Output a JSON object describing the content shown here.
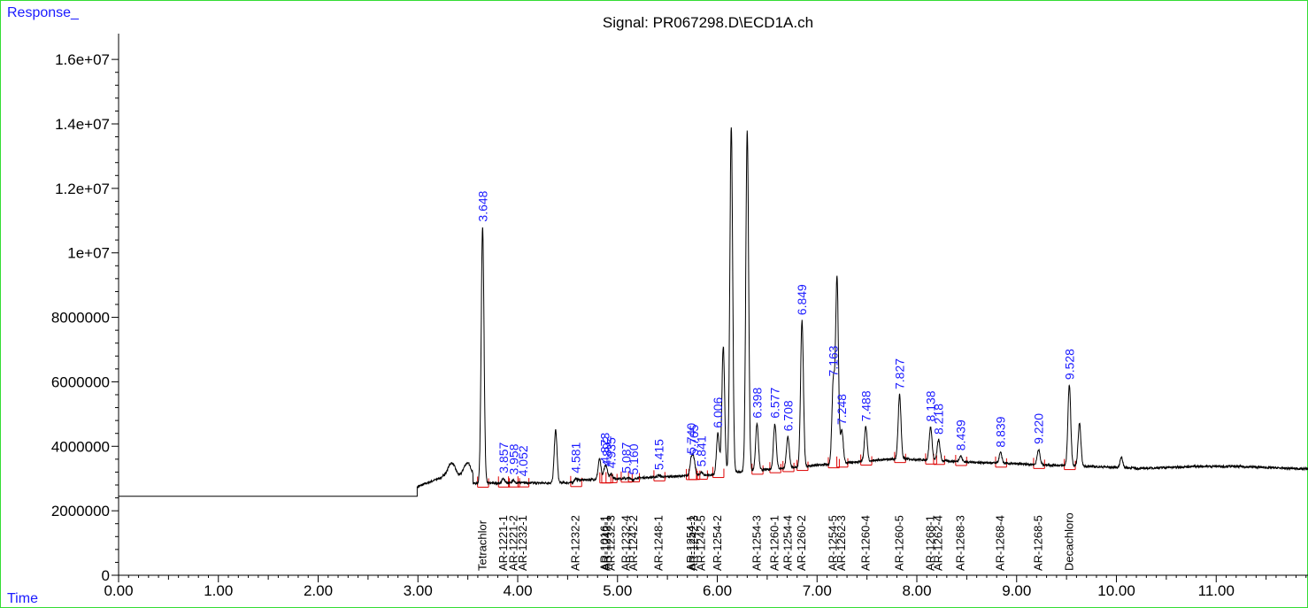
{
  "chart_data": {
    "type": "line",
    "title": "Signal: PR067298.D\\ECD1A.ch",
    "ylabel": "Response_",
    "xlabel": "Time",
    "xlim": [
      0,
      11.92
    ],
    "ylim": [
      0,
      16800000
    ],
    "x_ticks": [
      "0.00",
      "1.00",
      "2.00",
      "3.00",
      "4.00",
      "5.00",
      "6.00",
      "7.00",
      "8.00",
      "9.00",
      "10.00",
      "11.00"
    ],
    "y_ticks": [
      "0",
      "2000000",
      "4000000",
      "6000000",
      "8000000",
      "1e+07",
      "1.2e+07",
      "1.4e+07",
      "1.6e+07"
    ],
    "baseline_level": 2450000,
    "signal_start": 2.99,
    "peaks": [
      {
        "rt": 3.648,
        "height": 10800000,
        "label": "3.648"
      },
      {
        "rt": 3.857,
        "height": 3000000,
        "label": "3.857"
      },
      {
        "rt": 3.958,
        "height": 2950000,
        "label": "3.958"
      },
      {
        "rt": 4.052,
        "height": 2900000,
        "label": "4.052"
      },
      {
        "rt": 4.38,
        "height": 4500000,
        "label": ""
      },
      {
        "rt": 4.581,
        "height": 3000000,
        "label": "4.581"
      },
      {
        "rt": 4.82,
        "height": 3600000,
        "label": ""
      },
      {
        "rt": 4.873,
        "height": 3300000,
        "label": "4.873"
      },
      {
        "rt": 4.892,
        "height": 3200000,
        "label": "4.892"
      },
      {
        "rt": 4.935,
        "height": 3150000,
        "label": "4.935"
      },
      {
        "rt": 5.087,
        "height": 3000000,
        "label": "5.087"
      },
      {
        "rt": 5.16,
        "height": 2950000,
        "label": "5.160"
      },
      {
        "rt": 5.415,
        "height": 3100000,
        "label": "5.415"
      },
      {
        "rt": 5.74,
        "height": 3600000,
        "label": "5.740"
      },
      {
        "rt": 5.765,
        "height": 3550000,
        "label": "5.765"
      },
      {
        "rt": 5.841,
        "height": 3200000,
        "label": "5.841"
      },
      {
        "rt": 6.006,
        "height": 4400000,
        "label": "6.006"
      },
      {
        "rt": 6.06,
        "height": 7100000,
        "label": ""
      },
      {
        "rt": 6.14,
        "height": 13900000,
        "label": ""
      },
      {
        "rt": 6.3,
        "height": 13800000,
        "label": ""
      },
      {
        "rt": 6.398,
        "height": 4700000,
        "label": "6.398"
      },
      {
        "rt": 6.577,
        "height": 4700000,
        "label": "6.577"
      },
      {
        "rt": 6.708,
        "height": 4300000,
        "label": "6.708"
      },
      {
        "rt": 6.849,
        "height": 7900000,
        "label": "6.849"
      },
      {
        "rt": 7.163,
        "height": 6000000,
        "label": "7.163"
      },
      {
        "rt": 7.2,
        "height": 9200000,
        "label": ""
      },
      {
        "rt": 7.248,
        "height": 4500000,
        "label": "7.248"
      },
      {
        "rt": 7.488,
        "height": 4600000,
        "label": "7.488"
      },
      {
        "rt": 7.827,
        "height": 5600000,
        "label": "7.827"
      },
      {
        "rt": 8.138,
        "height": 4600000,
        "label": "8.138"
      },
      {
        "rt": 8.218,
        "height": 4200000,
        "label": "8.218"
      },
      {
        "rt": 8.439,
        "height": 3700000,
        "label": "8.439"
      },
      {
        "rt": 8.839,
        "height": 3800000,
        "label": "8.839"
      },
      {
        "rt": 9.22,
        "height": 3900000,
        "label": "9.220"
      },
      {
        "rt": 9.528,
        "height": 5900000,
        "label": "9.528"
      },
      {
        "rt": 9.63,
        "height": 4700000,
        "label": ""
      },
      {
        "rt": 10.05,
        "height": 3650000,
        "label": ""
      }
    ],
    "compound_labels": [
      {
        "rt": 3.648,
        "label": "Tetrachlor"
      },
      {
        "rt": 3.857,
        "label": "AR-1221-1"
      },
      {
        "rt": 3.958,
        "label": "AR-1221-2"
      },
      {
        "rt": 4.052,
        "label": "AR-1232-1"
      },
      {
        "rt": 4.581,
        "label": "AR-1232-2"
      },
      {
        "rt": 4.873,
        "label": "AR-1016-1"
      },
      {
        "rt": 4.892,
        "label": "AR-1242-1"
      },
      {
        "rt": 4.935,
        "label": "AR-1232-3"
      },
      {
        "rt": 5.087,
        "label": "AR-1232-4"
      },
      {
        "rt": 5.16,
        "label": "AR-1242-2"
      },
      {
        "rt": 5.415,
        "label": "AR-1248-1"
      },
      {
        "rt": 5.74,
        "label": "AR-1254-1"
      },
      {
        "rt": 5.765,
        "label": "AR-1242-3"
      },
      {
        "rt": 5.841,
        "label": "AR-1242-5"
      },
      {
        "rt": 6.006,
        "label": "AR-1254-2"
      },
      {
        "rt": 6.398,
        "label": "AR-1254-3"
      },
      {
        "rt": 6.577,
        "label": "AR-1260-1"
      },
      {
        "rt": 6.708,
        "label": "AR-1254-4"
      },
      {
        "rt": 6.849,
        "label": "AR-1260-2"
      },
      {
        "rt": 7.163,
        "label": "AR-1254-5"
      },
      {
        "rt": 7.248,
        "label": "AR-1262-3"
      },
      {
        "rt": 7.488,
        "label": "AR-1260-4"
      },
      {
        "rt": 7.827,
        "label": "AR-1260-5"
      },
      {
        "rt": 8.138,
        "label": "AR-1268-1"
      },
      {
        "rt": 8.218,
        "label": "AR-1262-4"
      },
      {
        "rt": 8.439,
        "label": "AR-1268-3"
      },
      {
        "rt": 8.839,
        "label": "AR-1268-4"
      },
      {
        "rt": 9.22,
        "label": "AR-1268-5"
      },
      {
        "rt": 9.528,
        "label": "Decachloro"
      }
    ]
  }
}
